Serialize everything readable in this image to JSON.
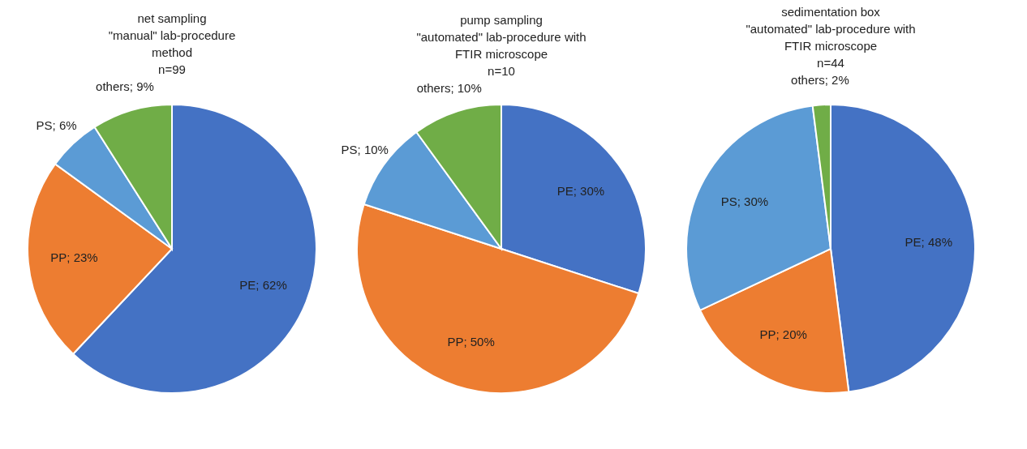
{
  "chart_data": [
    {
      "type": "pie",
      "title": "net sampling\n\"manual\" lab-procedure\nmethod\nn=99",
      "categories": [
        "PE",
        "PP",
        "PS",
        "others"
      ],
      "values": [
        62,
        23,
        6,
        9
      ],
      "colors": [
        "#4472c4",
        "#ed7d31",
        "#5b9bd5",
        "#70ad47"
      ],
      "value_labels": [
        "62%",
        "23%",
        "6%",
        "9%"
      ],
      "legend": false
    },
    {
      "type": "pie",
      "title": "pump sampling\n\"automated\" lab-procedure  with\nFTIR microscope\nn=10",
      "categories": [
        "PE",
        "PP",
        "PS",
        "others"
      ],
      "values": [
        30,
        50,
        10,
        10
      ],
      "colors": [
        "#4472c4",
        "#ed7d31",
        "#5b9bd5",
        "#70ad47"
      ],
      "value_labels": [
        "30%",
        "50%",
        "10%",
        "10%"
      ],
      "legend": false
    },
    {
      "type": "pie",
      "title": "sedimentation box\n\"automated\" lab-procedure  with\nFTIR microscope\nn=44",
      "categories": [
        "PE",
        "PP",
        "PS",
        "others"
      ],
      "values": [
        48,
        20,
        30,
        2
      ],
      "colors": [
        "#4472c4",
        "#ed7d31",
        "#5b9bd5",
        "#70ad47"
      ],
      "value_labels": [
        "48%",
        "20%",
        "30%",
        "2%"
      ],
      "legend": false
    }
  ]
}
